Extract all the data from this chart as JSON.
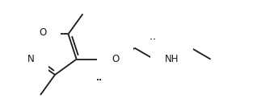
{
  "bg_color": "#ffffff",
  "line_color": "#1a1a1a",
  "lw": 1.3,
  "fig_width": 3.18,
  "fig_height": 1.38,
  "dpi": 100,
  "xlim": [
    0,
    318
  ],
  "ylim": [
    0,
    138
  ]
}
